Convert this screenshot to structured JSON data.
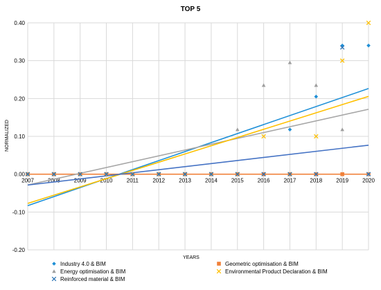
{
  "chart_data": {
    "type": "scatter",
    "title": "TOP 5",
    "xlabel": "YEARS",
    "ylabel": "NORMALIZED",
    "xlim": [
      2007,
      2020
    ],
    "ylim": [
      -0.2,
      0.4
    ],
    "x_ticks": [
      "2007",
      "2008",
      "2009",
      "2010",
      "2011",
      "2012",
      "2013",
      "2014",
      "2015",
      "2016",
      "2017",
      "2018",
      "2019",
      "2020"
    ],
    "y_ticks": [
      "-0.20",
      "-0.10",
      "0.00",
      "0.10",
      "0.20",
      "0.30",
      "0.40"
    ],
    "grid": true,
    "legend_position": "bottom",
    "trendlines": true,
    "series": [
      {
        "name": "Industry 4.0 & BIM",
        "marker": "diamond",
        "color": "#1f8fd6",
        "trend_color": "#1e90d8",
        "x": [
          2007,
          2008,
          2009,
          2010,
          2011,
          2012,
          2013,
          2014,
          2015,
          2016,
          2017,
          2018,
          2019,
          2020
        ],
        "y": [
          0,
          0,
          0,
          0,
          0,
          0,
          0,
          0,
          0,
          0,
          0.118,
          0.205,
          0.34,
          0.34
        ]
      },
      {
        "name": "Geometric optimisation & BIM",
        "marker": "square",
        "color": "#f0813a",
        "trend_color": "#f0813a",
        "x": [
          2007,
          2008,
          2009,
          2010,
          2011,
          2012,
          2013,
          2014,
          2015,
          2016,
          2017,
          2018,
          2019,
          2020
        ],
        "y": [
          0,
          0,
          0,
          0,
          0,
          0,
          0,
          0,
          0,
          0,
          0,
          0,
          0,
          0
        ]
      },
      {
        "name": "Energy optimisation & BIM",
        "marker": "triangle",
        "color": "#9e9e9e",
        "trend_color": "#a6a6a6",
        "x": [
          2007,
          2008,
          2009,
          2010,
          2011,
          2012,
          2013,
          2014,
          2015,
          2016,
          2017,
          2018,
          2019,
          2020
        ],
        "y": [
          0,
          0,
          0,
          0,
          0,
          0,
          0,
          0,
          0.118,
          0.235,
          0.295,
          0.235,
          0.118,
          0
        ]
      },
      {
        "name": "Environmental Product Declaration & BIM",
        "marker": "x",
        "color": "#ffc000",
        "trend_color": "#ffc000",
        "x": [
          2007,
          2008,
          2009,
          2010,
          2011,
          2012,
          2013,
          2014,
          2015,
          2016,
          2017,
          2018,
          2019,
          2020
        ],
        "y": [
          0,
          0,
          0,
          0,
          0,
          0,
          0,
          0,
          0,
          0.1,
          0,
          0.1,
          0.3,
          0.4
        ]
      },
      {
        "name": "Reinforced material & BIM",
        "marker": "x",
        "color": "#2e75b6",
        "trend_color": "#4472c4",
        "x": [
          2007,
          2008,
          2009,
          2010,
          2011,
          2012,
          2013,
          2014,
          2015,
          2016,
          2017,
          2018,
          2019,
          2020
        ],
        "y": [
          0,
          0,
          0,
          0,
          0,
          0,
          0,
          0,
          0,
          0,
          0,
          0,
          0.335,
          0
        ]
      }
    ]
  }
}
